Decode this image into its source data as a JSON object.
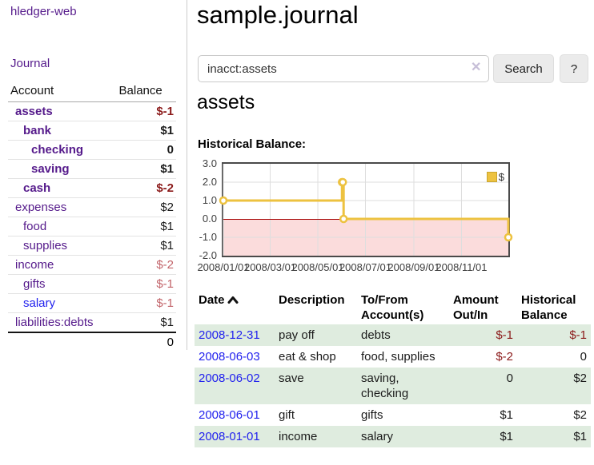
{
  "colors": {
    "accent_purple": "#551a8b",
    "link_blue": "#2222ee",
    "negative_strong": "#8b1a1a",
    "negative_soft": "#c2646a",
    "row_stripe_green": "#dfecdf",
    "chart_line": "#edc240",
    "chart_negative_region": "#fbdcdc",
    "chart_zero_line": "#a40000"
  },
  "sidebar": {
    "brand": "hledger-web",
    "journal_label": "Journal",
    "accounts": {
      "header_account": "Account",
      "header_balance": "Balance",
      "rows": [
        {
          "name": "assets",
          "level": 1,
          "bold": true,
          "neg": true,
          "balance": "$-1"
        },
        {
          "name": "bank",
          "level": 2,
          "bold": true,
          "neg": false,
          "balance": "$1"
        },
        {
          "name": "checking",
          "level": 3,
          "bold": true,
          "neg": false,
          "balance": "0"
        },
        {
          "name": "saving",
          "level": 3,
          "bold": true,
          "neg": false,
          "balance": "$1"
        },
        {
          "name": "cash",
          "level": 2,
          "bold": true,
          "neg": true,
          "balance": "$-2"
        },
        {
          "name": "expenses",
          "level": 1,
          "bold": false,
          "neg": false,
          "balance": "$2"
        },
        {
          "name": "food",
          "level": 2,
          "bold": false,
          "neg": false,
          "balance": "$1"
        },
        {
          "name": "supplies",
          "level": 2,
          "bold": false,
          "neg": false,
          "balance": "$1"
        },
        {
          "name": "income",
          "level": 1,
          "bold": false,
          "neg": true,
          "balance": "$-2"
        },
        {
          "name": "gifts",
          "level": 2,
          "bold": false,
          "neg": true,
          "balance": "$-1"
        },
        {
          "name": "salary",
          "level": 2,
          "bold": false,
          "neg": true,
          "unvisited": true,
          "balance": "$-1"
        },
        {
          "name": "liabilities:debts",
          "level": 1,
          "bold": false,
          "neg": false,
          "balance": "$1"
        }
      ],
      "total": "0"
    }
  },
  "main": {
    "title": "sample.journal",
    "search": {
      "query": "inacct:assets",
      "clear_icon": "✕",
      "search_button": "Search",
      "help_button": "?"
    },
    "account_heading": "assets",
    "chart_title": "Historical Balance:"
  },
  "chart_data": {
    "type": "line",
    "step": true,
    "title": "Historical Balance",
    "series": [
      {
        "name": "$",
        "color": "#edc240",
        "points": [
          [
            "2008-01-01",
            1
          ],
          [
            "2008-06-01",
            2
          ],
          [
            "2008-06-02",
            2
          ],
          [
            "2008-06-03",
            0
          ],
          [
            "2008-12-31",
            -1
          ]
        ]
      }
    ],
    "x_range": [
      "2008-01-01",
      "2008-12-31"
    ],
    "x_ticks": [
      "2008/01/01",
      "2008/03/01",
      "2008/05/01",
      "2008/07/01",
      "2008/09/01",
      "2008/11/01"
    ],
    "x_tick_dates": [
      "2008-01-01",
      "2008-03-01",
      "2008-05-01",
      "2008-07-01",
      "2008-09-01",
      "2008-11-01"
    ],
    "y_ticks": [
      3.0,
      2.0,
      1.0,
      0.0,
      -1.0,
      -2.0
    ],
    "ylim": [
      -2,
      3
    ],
    "grid": true,
    "legend": [
      "$"
    ],
    "legend_position": "top-right",
    "negative_region_color": "#fbdcdc",
    "zero_line_color": "#a40000"
  },
  "register": {
    "headers": {
      "date": "Date",
      "description": "Description",
      "accounts": "To/From Account(s)",
      "amount": "Amount Out/In",
      "balance": "Historical Balance"
    },
    "sort": {
      "column": "date",
      "direction": "ascending"
    },
    "rows": [
      {
        "date": "2008-12-31",
        "description": "pay off",
        "accounts": "debts",
        "amount": "$-1",
        "amount_neg": true,
        "balance": "$-1",
        "balance_neg": true
      },
      {
        "date": "2008-06-03",
        "description": "eat & shop",
        "accounts": "food, supplies",
        "amount": "$-2",
        "amount_neg": true,
        "balance": "0",
        "balance_neg": false
      },
      {
        "date": "2008-06-02",
        "description": "save",
        "accounts": "saving, checking",
        "amount": "0",
        "amount_neg": false,
        "balance": "$2",
        "balance_neg": false
      },
      {
        "date": "2008-06-01",
        "description": "gift",
        "accounts": "gifts",
        "amount": "$1",
        "amount_neg": false,
        "balance": "$2",
        "balance_neg": false
      },
      {
        "date": "2008-01-01",
        "description": "income",
        "accounts": "salary",
        "amount": "$1",
        "amount_neg": false,
        "balance": "$1",
        "balance_neg": false
      }
    ]
  }
}
